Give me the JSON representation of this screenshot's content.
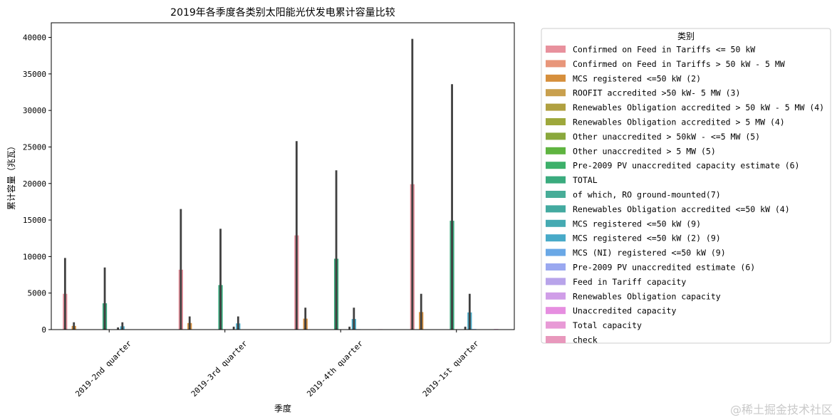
{
  "chart_data": {
    "type": "bar",
    "title": "2019年各季度各类别太阳能光伏发电累计容量比较",
    "xlabel": "季度",
    "ylabel": "累计容量（兆瓦）",
    "ylim": [
      0,
      42000
    ],
    "yticks": [
      0,
      5000,
      10000,
      15000,
      20000,
      25000,
      30000,
      35000,
      40000
    ],
    "categories": [
      "2019-2nd quarter",
      "2019-3rd quarter",
      "2019-4th quarter",
      "2019-1st quarter"
    ],
    "legend_title": "类别",
    "legend_position": "outside-right",
    "series": [
      {
        "name": "Confirmed on Feed in Tariffs  <= 50 kW",
        "color": "#e8919d",
        "values": [
          4900,
          8200,
          12900,
          19900
        ],
        "err": [
          9800,
          16500,
          25800,
          39800
        ]
      },
      {
        "name": "Confirmed on Feed in Tariffs  > 50 kW - 5 MW",
        "color": "#e8967a",
        "values": [
          0,
          0,
          0,
          0
        ],
        "err": [
          0,
          0,
          0,
          0
        ]
      },
      {
        "name": "MCS registered <=50 kW (2)",
        "color": "#d68f3c",
        "values": [
          500,
          900,
          1500,
          2400
        ],
        "err": [
          1000,
          1800,
          3000,
          4900
        ]
      },
      {
        "name": "ROOFIT accredited >50 kW- 5 MW (3)",
        "color": "#c9a04e",
        "values": [
          0,
          0,
          0,
          0
        ],
        "err": [
          0,
          0,
          0,
          0
        ]
      },
      {
        "name": "Renewables Obligation accredited > 50 kW - 5 MW (4)",
        "color": "#b0a040",
        "values": [
          0,
          0,
          0,
          0
        ],
        "err": [
          0,
          0,
          0,
          0
        ]
      },
      {
        "name": "Renewables Obligation accredited > 5 MW (4)",
        "color": "#9ea83c",
        "values": [
          0,
          0,
          0,
          0
        ],
        "err": [
          0,
          0,
          0,
          0
        ]
      },
      {
        "name": "Other unaccredited > 50kW - <=5 MW (5)",
        "color": "#8aa83c",
        "values": [
          0,
          0,
          0,
          0
        ],
        "err": [
          0,
          0,
          0,
          0
        ]
      },
      {
        "name": "Other unaccredited > 5 MW (5)",
        "color": "#5fb440",
        "values": [
          0,
          0,
          0,
          0
        ],
        "err": [
          0,
          0,
          0,
          0
        ]
      },
      {
        "name": "Pre-2009 PV unaccredited capacity estimate (6)",
        "color": "#3db06a",
        "values": [
          0,
          0,
          0,
          0
        ],
        "err": [
          0,
          0,
          0,
          0
        ]
      },
      {
        "name": "TOTAL",
        "color": "#3aab7e",
        "values": [
          3600,
          6100,
          9700,
          14900
        ],
        "err": [
          8500,
          13800,
          21800,
          33600
        ]
      },
      {
        "name": "of which, RO ground-mounted(7)",
        "color": "#48ad98",
        "values": [
          0,
          0,
          0,
          0
        ],
        "err": [
          0,
          0,
          0,
          0
        ]
      },
      {
        "name": "Renewables Obligation accredited <=50 kW (4)",
        "color": "#43aaa0",
        "values": [
          0,
          0,
          0,
          0
        ],
        "err": [
          0,
          0,
          0,
          0
        ]
      },
      {
        "name": "MCS registered <=50 kW (9)",
        "color": "#45aab2",
        "values": [
          0,
          0,
          0,
          0
        ],
        "err": [
          300,
          400,
          400,
          400
        ]
      },
      {
        "name": "MCS registered <=50 kW (2) (9)",
        "color": "#48aac8",
        "values": [
          450,
          850,
          1450,
          2350
        ],
        "err": [
          1000,
          1800,
          3000,
          4900
        ]
      },
      {
        "name": "MCS (NI) registered <=50 kW (9)",
        "color": "#6aa8e6",
        "values": [
          20,
          40,
          60,
          80
        ],
        "err": [
          0,
          0,
          0,
          0
        ]
      },
      {
        "name": "Pre-2009 PV unaccredited estimate (6)",
        "color": "#9aa8f0",
        "values": [
          0,
          0,
          0,
          0
        ],
        "err": [
          0,
          0,
          0,
          0
        ]
      },
      {
        "name": "Feed in Tariff capacity",
        "color": "#b8a4ea",
        "values": [
          0,
          0,
          0,
          0
        ],
        "err": [
          0,
          0,
          0,
          0
        ]
      },
      {
        "name": "Renewables Obligation capacity",
        "color": "#d09ee8",
        "values": [
          0,
          0,
          0,
          0
        ],
        "err": [
          0,
          0,
          0,
          0
        ]
      },
      {
        "name": "Unaccredited capacity",
        "color": "#e68ee0",
        "values": [
          0,
          0,
          0,
          0
        ],
        "err": [
          0,
          0,
          0,
          0
        ]
      },
      {
        "name": "Total capacity",
        "color": "#e89ad6",
        "values": [
          20,
          40,
          60,
          80
        ],
        "err": [
          0,
          0,
          0,
          0
        ]
      },
      {
        "name": "check",
        "color": "#e898bc",
        "values": [
          0,
          0,
          0,
          0
        ],
        "err": [
          0,
          0,
          0,
          0
        ]
      }
    ]
  },
  "watermark": "@稀土掘金技术社区"
}
